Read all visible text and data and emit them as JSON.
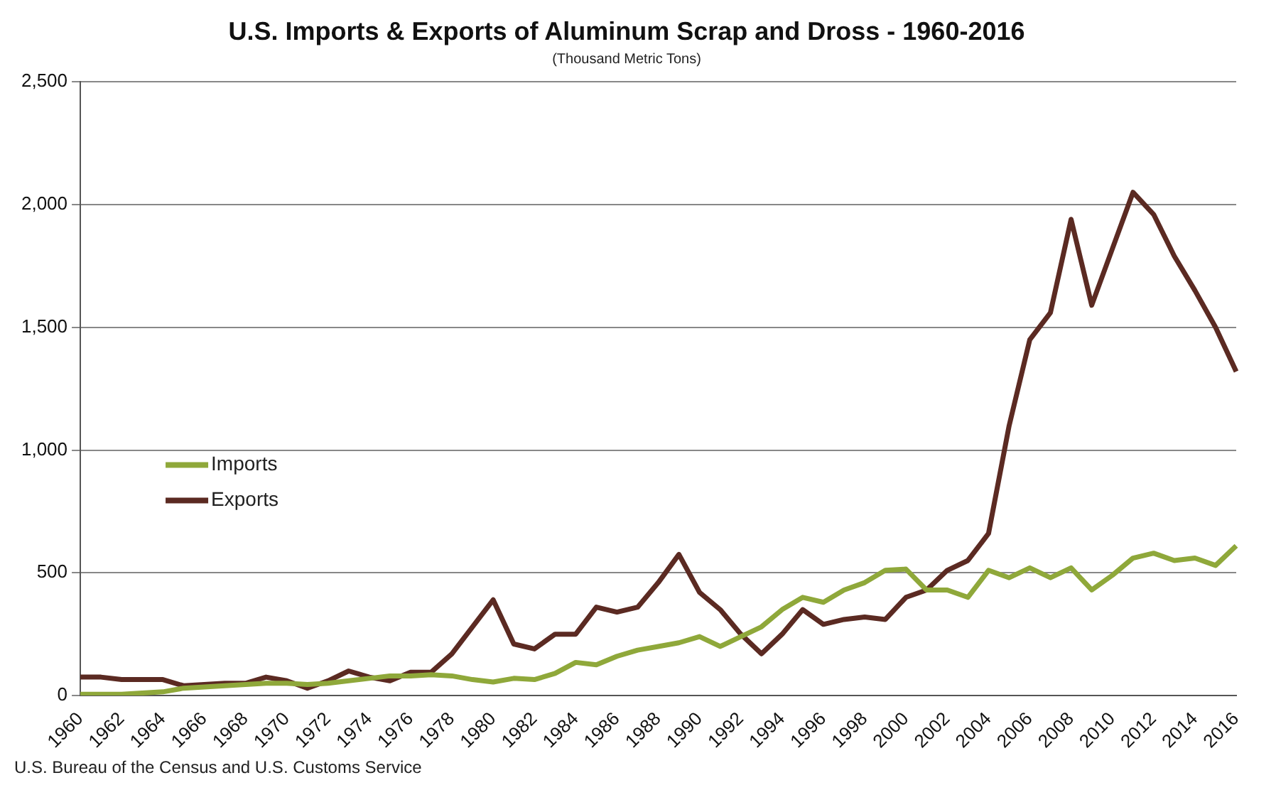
{
  "chart_data": {
    "type": "line",
    "title": "U.S. Imports & Exports of Aluminum Scrap and Dross - 1960-2016",
    "subtitle": "(Thousand Metric Tons)",
    "categories": [
      "1960",
      null,
      "1962",
      null,
      "1964",
      null,
      "1966",
      null,
      "1968",
      null,
      "1970",
      null,
      "1972",
      null,
      "1974",
      null,
      "1976",
      null,
      "1978",
      null,
      "1980",
      null,
      "1982",
      null,
      "1984",
      null,
      "1986",
      null,
      "1988",
      null,
      "1990",
      null,
      "1992",
      null,
      "1994",
      null,
      "1996",
      null,
      "1998",
      null,
      "2000",
      null,
      "2002",
      null,
      "2004",
      null,
      "2006",
      null,
      "2008",
      null,
      "2010",
      null,
      "2012",
      null,
      "2014",
      null,
      "2016"
    ],
    "series": [
      {
        "name": "Imports",
        "color": "#8fa83a",
        "values": [
          5,
          5,
          5,
          10,
          15,
          30,
          35,
          40,
          45,
          50,
          50,
          45,
          50,
          60,
          70,
          80,
          80,
          85,
          80,
          65,
          55,
          70,
          65,
          90,
          135,
          125,
          160,
          185,
          200,
          215,
          240,
          200,
          240,
          280,
          350,
          400,
          380,
          430,
          460,
          510,
          515,
          430,
          430,
          400,
          510,
          480,
          520,
          480,
          520,
          430,
          490,
          560,
          580,
          550,
          560,
          530,
          610
        ]
      },
      {
        "name": "Exports",
        "color": "#5b2a22",
        "values": [
          75,
          75,
          65,
          65,
          65,
          40,
          45,
          50,
          50,
          75,
          60,
          30,
          60,
          100,
          75,
          60,
          95,
          95,
          170,
          280,
          390,
          210,
          190,
          250,
          250,
          360,
          340,
          360,
          460,
          575,
          420,
          350,
          250,
          170,
          250,
          350,
          290,
          310,
          320,
          310,
          400,
          430,
          510,
          550,
          660,
          1100,
          1450,
          1560,
          1940,
          1590,
          1820,
          2050,
          1960,
          1790,
          1650,
          1500,
          1320
        ]
      }
    ],
    "ylim": [
      0,
      2500
    ],
    "yticks": [
      0,
      500,
      {
        "value": 1000,
        "label": "1,000"
      },
      {
        "value": 1500,
        "label": "1,500"
      },
      {
        "value": 2000,
        "label": "2,000"
      },
      {
        "value": 2500,
        "label": "2,500"
      }
    ],
    "grid": "y",
    "legend": "left",
    "marker": "none",
    "line_style": "solid",
    "annotations": [
      "U.S. Bureau of the Census and U.S. Customs Service"
    ]
  }
}
